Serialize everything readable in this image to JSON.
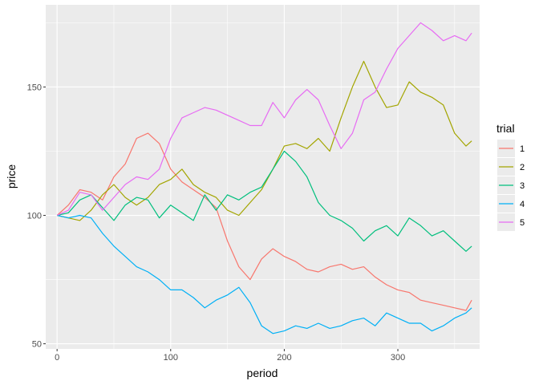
{
  "chart_data": {
    "type": "line",
    "title": "",
    "xlabel": "period",
    "ylabel": "price",
    "xlim": [
      -10,
      372
    ],
    "ylim": [
      48,
      182
    ],
    "x_ticks": [
      0,
      100,
      200,
      300
    ],
    "y_ticks": [
      50,
      100,
      150
    ],
    "grid": true,
    "legend": {
      "title": "trial",
      "placement": "right"
    },
    "series": [
      {
        "name": "1",
        "color": "#F8766D",
        "points": [
          [
            0,
            100
          ],
          [
            10,
            104
          ],
          [
            20,
            110
          ],
          [
            30,
            109
          ],
          [
            40,
            106
          ],
          [
            50,
            115
          ],
          [
            60,
            120
          ],
          [
            70,
            130
          ],
          [
            80,
            132
          ],
          [
            90,
            128
          ],
          [
            100,
            118
          ],
          [
            110,
            113
          ],
          [
            120,
            110
          ],
          [
            130,
            107
          ],
          [
            140,
            103
          ],
          [
            150,
            90
          ],
          [
            160,
            80
          ],
          [
            170,
            75
          ],
          [
            180,
            83
          ],
          [
            190,
            87
          ],
          [
            200,
            84
          ],
          [
            210,
            82
          ],
          [
            220,
            79
          ],
          [
            230,
            78
          ],
          [
            240,
            80
          ],
          [
            250,
            81
          ],
          [
            260,
            79
          ],
          [
            270,
            80
          ],
          [
            280,
            76
          ],
          [
            290,
            73
          ],
          [
            300,
            71
          ],
          [
            310,
            70
          ],
          [
            320,
            67
          ],
          [
            330,
            66
          ],
          [
            340,
            65
          ],
          [
            350,
            64
          ],
          [
            360,
            63
          ],
          [
            365,
            67
          ]
        ]
      },
      {
        "name": "2",
        "color": "#A3A500",
        "points": [
          [
            0,
            100
          ],
          [
            10,
            99
          ],
          [
            20,
            98
          ],
          [
            30,
            102
          ],
          [
            40,
            108
          ],
          [
            50,
            112
          ],
          [
            60,
            107
          ],
          [
            70,
            104
          ],
          [
            80,
            107
          ],
          [
            90,
            112
          ],
          [
            100,
            114
          ],
          [
            110,
            118
          ],
          [
            120,
            112
          ],
          [
            130,
            109
          ],
          [
            140,
            107
          ],
          [
            150,
            102
          ],
          [
            160,
            100
          ],
          [
            170,
            105
          ],
          [
            180,
            110
          ],
          [
            190,
            118
          ],
          [
            200,
            127
          ],
          [
            210,
            128
          ],
          [
            220,
            126
          ],
          [
            230,
            130
          ],
          [
            240,
            125
          ],
          [
            250,
            138
          ],
          [
            260,
            150
          ],
          [
            270,
            160
          ],
          [
            280,
            150
          ],
          [
            290,
            142
          ],
          [
            300,
            143
          ],
          [
            310,
            152
          ],
          [
            320,
            148
          ],
          [
            330,
            146
          ],
          [
            340,
            143
          ],
          [
            350,
            132
          ],
          [
            360,
            127
          ],
          [
            365,
            129
          ]
        ]
      },
      {
        "name": "3",
        "color": "#00BF7D",
        "points": [
          [
            0,
            100
          ],
          [
            10,
            101
          ],
          [
            20,
            106
          ],
          [
            30,
            108
          ],
          [
            40,
            103
          ],
          [
            50,
            98
          ],
          [
            60,
            104
          ],
          [
            70,
            107
          ],
          [
            80,
            106
          ],
          [
            90,
            99
          ],
          [
            100,
            104
          ],
          [
            110,
            101
          ],
          [
            120,
            98
          ],
          [
            130,
            108
          ],
          [
            140,
            102
          ],
          [
            150,
            108
          ],
          [
            160,
            106
          ],
          [
            170,
            109
          ],
          [
            180,
            111
          ],
          [
            190,
            118
          ],
          [
            200,
            125
          ],
          [
            210,
            121
          ],
          [
            220,
            115
          ],
          [
            230,
            105
          ],
          [
            240,
            100
          ],
          [
            250,
            98
          ],
          [
            260,
            95
          ],
          [
            270,
            90
          ],
          [
            280,
            94
          ],
          [
            290,
            96
          ],
          [
            300,
            92
          ],
          [
            310,
            99
          ],
          [
            320,
            96
          ],
          [
            330,
            92
          ],
          [
            340,
            94
          ],
          [
            350,
            90
          ],
          [
            360,
            86
          ],
          [
            365,
            88
          ]
        ]
      },
      {
        "name": "4",
        "color": "#00B0F6",
        "points": [
          [
            0,
            100
          ],
          [
            10,
            99
          ],
          [
            20,
            100
          ],
          [
            30,
            99
          ],
          [
            40,
            93
          ],
          [
            50,
            88
          ],
          [
            60,
            84
          ],
          [
            70,
            80
          ],
          [
            80,
            78
          ],
          [
            90,
            75
          ],
          [
            100,
            71
          ],
          [
            110,
            71
          ],
          [
            120,
            68
          ],
          [
            130,
            64
          ],
          [
            140,
            67
          ],
          [
            150,
            69
          ],
          [
            160,
            72
          ],
          [
            170,
            66
          ],
          [
            180,
            57
          ],
          [
            190,
            54
          ],
          [
            200,
            55
          ],
          [
            210,
            57
          ],
          [
            220,
            56
          ],
          [
            230,
            58
          ],
          [
            240,
            56
          ],
          [
            250,
            57
          ],
          [
            260,
            59
          ],
          [
            270,
            60
          ],
          [
            280,
            57
          ],
          [
            290,
            62
          ],
          [
            300,
            60
          ],
          [
            310,
            58
          ],
          [
            320,
            58
          ],
          [
            330,
            55
          ],
          [
            340,
            57
          ],
          [
            350,
            60
          ],
          [
            360,
            62
          ],
          [
            365,
            64
          ]
        ]
      },
      {
        "name": "5",
        "color": "#E76BF3",
        "points": [
          [
            0,
            100
          ],
          [
            10,
            102
          ],
          [
            20,
            109
          ],
          [
            30,
            108
          ],
          [
            40,
            102
          ],
          [
            50,
            107
          ],
          [
            60,
            112
          ],
          [
            70,
            115
          ],
          [
            80,
            114
          ],
          [
            90,
            118
          ],
          [
            100,
            130
          ],
          [
            110,
            138
          ],
          [
            120,
            140
          ],
          [
            130,
            142
          ],
          [
            140,
            141
          ],
          [
            150,
            139
          ],
          [
            160,
            137
          ],
          [
            170,
            135
          ],
          [
            180,
            135
          ],
          [
            190,
            144
          ],
          [
            200,
            138
          ],
          [
            210,
            145
          ],
          [
            220,
            149
          ],
          [
            230,
            145
          ],
          [
            240,
            135
          ],
          [
            250,
            126
          ],
          [
            260,
            132
          ],
          [
            270,
            145
          ],
          [
            280,
            148
          ],
          [
            290,
            157
          ],
          [
            300,
            165
          ],
          [
            310,
            170
          ],
          [
            320,
            175
          ],
          [
            330,
            172
          ],
          [
            340,
            168
          ],
          [
            350,
            170
          ],
          [
            360,
            168
          ],
          [
            365,
            171
          ]
        ]
      }
    ]
  }
}
